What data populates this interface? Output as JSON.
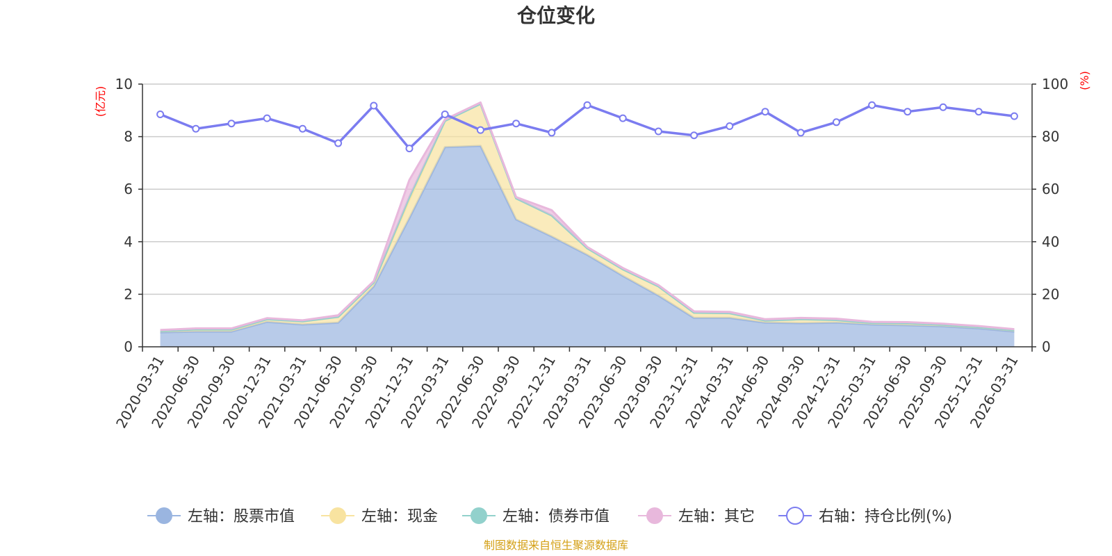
{
  "chart_data": {
    "type": "area",
    "title": "仓位变化",
    "left_axis_unit": "(亿元)",
    "right_axis_unit": "(%)",
    "left_ylim": [
      0,
      10
    ],
    "right_ylim": [
      0,
      100
    ],
    "left_ticks": [
      "0",
      "2",
      "4",
      "6",
      "8",
      "10"
    ],
    "right_ticks": [
      "0",
      "20",
      "40",
      "60",
      "80",
      "100"
    ],
    "categories": [
      "2020-03-31",
      "2020-06-30",
      "2020-09-30",
      "2020-12-31",
      "2021-03-31",
      "2021-06-30",
      "2021-09-30",
      "2021-12-31",
      "2022-03-31",
      "2022-06-30",
      "2022-09-30",
      "2022-12-31",
      "2023-03-31",
      "2023-06-30",
      "2023-09-30",
      "2023-12-31",
      "2024-03-31",
      "2024-06-30",
      "2024-09-30",
      "2024-12-31",
      "2025-03-31",
      "2025-06-30",
      "2025-09-30",
      "2025-12-31",
      "2026-03-31"
    ],
    "series": [
      {
        "name": "左轴：股票市值",
        "axis": "left",
        "color": "#9ab5e0",
        "values": [
          0.55,
          0.58,
          0.58,
          0.95,
          0.85,
          0.92,
          2.3,
          4.9,
          7.6,
          7.65,
          4.85,
          4.2,
          3.5,
          2.7,
          1.95,
          1.1,
          1.1,
          0.92,
          0.9,
          0.92,
          0.85,
          0.82,
          0.78,
          0.7,
          0.58
        ]
      },
      {
        "name": "左轴：现金",
        "axis": "left",
        "color": "#f8e3a0",
        "values": [
          0.05,
          0.08,
          0.08,
          0.1,
          0.12,
          0.22,
          0.15,
          0.7,
          1.0,
          1.6,
          0.8,
          0.8,
          0.25,
          0.25,
          0.35,
          0.2,
          0.18,
          0.08,
          0.15,
          0.1,
          0.06,
          0.08,
          0.06,
          0.05,
          0.05
        ]
      },
      {
        "name": "左轴：债券市值",
        "axis": "left",
        "color": "#92d1cc",
        "values": [
          0,
          0,
          0,
          0,
          0,
          0,
          0,
          0.1,
          0,
          0,
          0,
          0,
          0,
          0,
          0,
          0,
          0,
          0,
          0,
          0,
          0,
          0,
          0,
          0,
          0
        ]
      },
      {
        "name": "左轴：其它",
        "axis": "left",
        "color": "#e8b8dc",
        "values": [
          0.04,
          0.04,
          0.04,
          0.04,
          0.04,
          0.06,
          0.05,
          0.65,
          0.05,
          0.05,
          0.05,
          0.2,
          0.05,
          0.05,
          0.05,
          0.05,
          0.05,
          0.05,
          0.05,
          0.05,
          0.04,
          0.04,
          0.04,
          0.04,
          0.04
        ]
      },
      {
        "name": "右轴：持仓比例(%)",
        "axis": "right",
        "color": "#7b7cf0",
        "values": [
          88.5,
          83.0,
          85.0,
          87.0,
          83.0,
          77.5,
          91.8,
          75.5,
          88.5,
          82.5,
          85.0,
          81.5,
          92.0,
          87.0,
          82.0,
          80.5,
          84.0,
          89.5,
          81.5,
          85.5,
          92.0,
          89.5,
          91.2,
          89.5,
          87.8
        ]
      }
    ],
    "legend_position": "bottom"
  },
  "source_text": "制图数据来自恒生聚源数据库"
}
